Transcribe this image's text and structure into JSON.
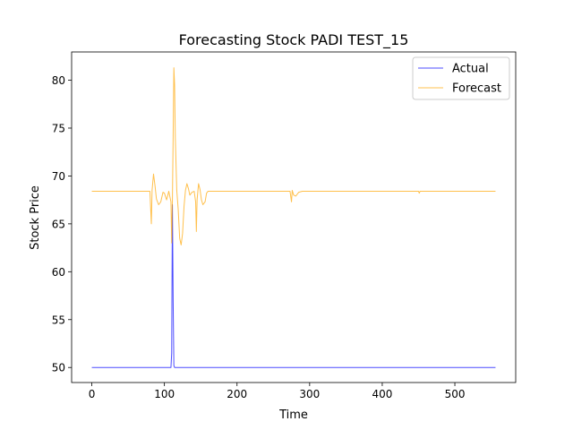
{
  "chart_data": {
    "type": "line",
    "title": "Forecasting Stock PADI TEST_15",
    "xlabel": "Time",
    "ylabel": "Stock Price",
    "xlim": [
      -27.8,
      583.8
    ],
    "ylim": [
      48.43,
      82.95
    ],
    "xticks": [
      0,
      100,
      200,
      300,
      400,
      500
    ],
    "yticks": [
      50,
      55,
      60,
      65,
      70,
      75,
      80
    ],
    "legend_position": "top-right",
    "grid": false,
    "series": [
      {
        "name": "Actual",
        "color": "#0000ff",
        "points": [
          [
            0,
            50.0
          ],
          [
            109,
            50.0
          ],
          [
            110,
            51.5
          ],
          [
            111,
            67.0
          ],
          [
            112,
            57.0
          ],
          [
            113,
            50.2
          ],
          [
            114,
            50.0
          ],
          [
            556,
            50.0
          ]
        ]
      },
      {
        "name": "Forecast",
        "color": "#ffa500",
        "points": [
          [
            0,
            68.4
          ],
          [
            80,
            68.4
          ],
          [
            82,
            65.0
          ],
          [
            83,
            68.5
          ],
          [
            85,
            70.2
          ],
          [
            87,
            69.0
          ],
          [
            89,
            67.6
          ],
          [
            92,
            67.0
          ],
          [
            95,
            67.3
          ],
          [
            98,
            68.3
          ],
          [
            100,
            68.2
          ],
          [
            103,
            67.5
          ],
          [
            106,
            68.4
          ],
          [
            109,
            67.3
          ],
          [
            110,
            63.0
          ],
          [
            111,
            67.5
          ],
          [
            112,
            74.0
          ],
          [
            113,
            81.3
          ],
          [
            114,
            79.5
          ],
          [
            115,
            74.0
          ],
          [
            117,
            68.5
          ],
          [
            119,
            66.5
          ],
          [
            121,
            63.5
          ],
          [
            123,
            62.8
          ],
          [
            125,
            64.0
          ],
          [
            127,
            66.8
          ],
          [
            129,
            68.5
          ],
          [
            131,
            69.2
          ],
          [
            133,
            68.7
          ],
          [
            135,
            68.0
          ],
          [
            138,
            68.3
          ],
          [
            141,
            68.4
          ],
          [
            143,
            67.3
          ],
          [
            144,
            64.2
          ],
          [
            145,
            67.5
          ],
          [
            147,
            69.2
          ],
          [
            149,
            68.6
          ],
          [
            151,
            67.5
          ],
          [
            153,
            67.0
          ],
          [
            156,
            67.3
          ],
          [
            158,
            68.2
          ],
          [
            160,
            68.4
          ],
          [
            273,
            68.4
          ],
          [
            275,
            67.3
          ],
          [
            276,
            68.5
          ],
          [
            278,
            68.0
          ],
          [
            281,
            67.9
          ],
          [
            285,
            68.3
          ],
          [
            290,
            68.4
          ],
          [
            450,
            68.4
          ],
          [
            451,
            68.2
          ],
          [
            452,
            68.4
          ],
          [
            556,
            68.4
          ]
        ]
      }
    ]
  }
}
